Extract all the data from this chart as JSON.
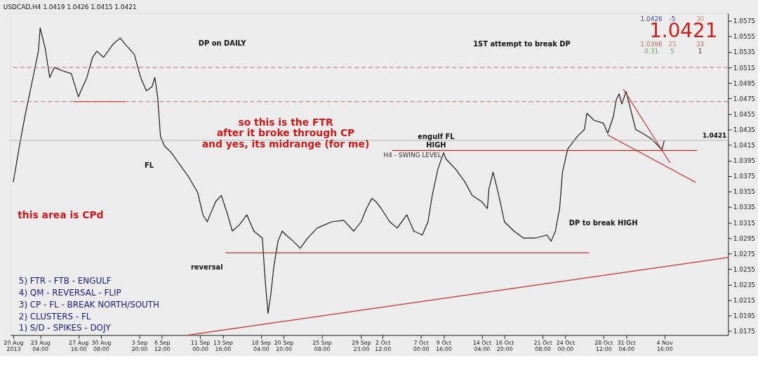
{
  "chart_data": {
    "type": "line",
    "title": "USDCAD,H4 1.0419 1.0426 1.0415 1.0421",
    "xlim": [
      "2013-08-19T16:00",
      "2013-11-12T04:00"
    ],
    "xticks": [
      {
        "value": "2013-08-20T00:00",
        "label": "20 Aug 2013"
      },
      {
        "value": "2013-08-23T04:00",
        "label": "23 Aug 04:00"
      },
      {
        "value": "2013-08-27T16:00",
        "label": "27 Aug 16:00"
      },
      {
        "value": "2013-08-30T08:00",
        "label": "30 Aug 08:00"
      },
      {
        "value": "2013-09-03T20:00",
        "label": "3 Sep 20:00"
      },
      {
        "value": "2013-09-06T12:00",
        "label": "6 Sep 12:00"
      },
      {
        "value": "2013-09-11T00:00",
        "label": "11 Sep 00:00"
      },
      {
        "value": "2013-09-13T16:00",
        "label": "13 Sep 16:00"
      },
      {
        "value": "2013-09-18T04:00",
        "label": "18 Sep 04:00"
      },
      {
        "value": "2013-09-20T20:00",
        "label": "20 Sep 20:00"
      },
      {
        "value": "2013-09-25T08:00",
        "label": "25 Sep 08:00"
      },
      {
        "value": "2013-09-29T23:00",
        "label": "29 Sep 23:00"
      },
      {
        "value": "2013-10-02T12:00",
        "label": "2 Oct 12:00"
      },
      {
        "value": "2013-10-07T00:00",
        "label": "7 Oct 00:00"
      },
      {
        "value": "2013-10-09T16:00",
        "label": "9 Oct 16:00"
      },
      {
        "value": "2013-10-14T04:00",
        "label": "14 Oct 04:00"
      },
      {
        "value": "2013-10-16T20:00",
        "label": "16 Oct 20:00"
      },
      {
        "value": "2013-10-21T08:00",
        "label": "21 Oct 08:00"
      },
      {
        "value": "2013-10-24T00:00",
        "label": "24 Oct 00:00"
      },
      {
        "value": "2013-10-28T12:00",
        "label": "28 Oct 12:00"
      },
      {
        "value": "2013-10-31T04:00",
        "label": "31 Oct 04:00"
      },
      {
        "value": "2013-11-04T16:00",
        "label": "4 Nov 16:00"
      }
    ],
    "ylim": [
      1.017,
      1.0585
    ],
    "yticks": [
      1.0175,
      1.0195,
      1.0215,
      1.0235,
      1.0255,
      1.0275,
      1.0295,
      1.0315,
      1.0335,
      1.0355,
      1.0375,
      1.0395,
      1.0415,
      1.0435,
      1.0455,
      1.0475,
      1.0495,
      1.0515,
      1.0535,
      1.0555,
      1.0575
    ],
    "grid": false,
    "line_style": "solid",
    "marker": "none",
    "series": [
      {
        "color": "#1a1a1a",
        "x": [
          "2013-08-20T00:00",
          "2013-08-20T19:00",
          "2013-08-21T09:00",
          "2013-08-22T04:00",
          "2013-08-22T23:00",
          "2013-08-23T04:00",
          "2013-08-23T18:00",
          "2013-08-24T07:00",
          "2013-08-24T20:00",
          "2013-08-25T17:00",
          "2013-08-26T20:00",
          "2013-08-27T16:00",
          "2013-08-28T04:00",
          "2013-08-28T16:00",
          "2013-08-29T08:00",
          "2013-08-29T20:00",
          "2013-08-30T15:00",
          "2013-08-31T18:00",
          "2013-09-01T14:00",
          "2013-09-02T04:00",
          "2013-09-03T06:00",
          "2013-09-04T00:00",
          "2013-09-04T16:00",
          "2013-09-05T08:00",
          "2013-09-05T16:00",
          "2013-09-06T00:00",
          "2013-09-06T08:00",
          "2013-09-06T19:00",
          "2013-09-07T15:00",
          "2013-09-08T11:00",
          "2013-09-09T14:00",
          "2013-09-10T17:00",
          "2013-09-11T08:00",
          "2013-09-11T20:00",
          "2013-09-12T08:00",
          "2013-09-12T20:00",
          "2013-09-13T12:00",
          "2013-09-14T06:00",
          "2013-09-14T19:00",
          "2013-09-15T15:00",
          "2013-09-16T12:00",
          "2013-09-17T08:00",
          "2013-09-18T08:00",
          "2013-09-18T16:00",
          "2013-09-19T00:00",
          "2013-09-19T08:00",
          "2013-09-19T16:00",
          "2013-09-20T04:00",
          "2013-09-20T16:00",
          "2013-09-21T03:00",
          "2013-09-21T23:00",
          "2013-09-22T19:00",
          "2013-09-23T16:00",
          "2013-09-24T19:00",
          "2013-09-26T12:00",
          "2013-09-27T22:00",
          "2013-09-29T02:00",
          "2013-09-29T23:00",
          "2013-09-30T14:00",
          "2013-10-01T05:00",
          "2013-10-01T17:00",
          "2013-10-02T08:00",
          "2013-10-03T08:00",
          "2013-10-04T05:00",
          "2013-10-05T08:00",
          "2013-10-06T04:00",
          "2013-10-07T04:00",
          "2013-10-07T20:00",
          "2013-10-08T08:00",
          "2013-10-09T00:00",
          "2013-10-09T16:00",
          "2013-10-09T23:00",
          "2013-10-11T02:00",
          "2013-10-12T05:00",
          "2013-10-13T01:00",
          "2013-10-14T04:00",
          "2013-10-14T20:00",
          "2013-10-15T00:00",
          "2013-10-15T12:00",
          "2013-10-16T00:00",
          "2013-10-16T08:00",
          "2013-10-16T20:00",
          "2013-10-17T23:00",
          "2013-10-19T02:00",
          "2013-10-20T12:00",
          "2013-10-21T20:00",
          "2013-10-22T08:00",
          "2013-10-22T20:00",
          "2013-10-23T08:00",
          "2013-10-23T16:00",
          "2013-10-24T07:00",
          "2013-10-25T10:00",
          "2013-10-26T06:00",
          "2013-10-26T13:00",
          "2013-10-27T09:00",
          "2013-10-28T12:00",
          "2013-10-29T00:00",
          "2013-10-29T16:00",
          "2013-10-30T00:00",
          "2013-10-30T08:00",
          "2013-10-30T16:00",
          "2013-10-31T04:00",
          "2013-11-01T07:00",
          "2013-11-02T03:00",
          "2013-11-03T06:00",
          "2013-11-04T09:00",
          "2013-11-04T16:00"
        ],
        "values": [
          1.0367,
          1.0418,
          1.0452,
          1.0494,
          1.0536,
          1.0566,
          1.054,
          1.0502,
          1.0515,
          1.0511,
          1.0507,
          1.0477,
          1.049,
          1.0502,
          1.0528,
          1.0536,
          1.0528,
          1.0545,
          1.0553,
          1.0545,
          1.0532,
          1.0502,
          1.0485,
          1.049,
          1.0502,
          1.0477,
          1.0426,
          1.0414,
          1.0405,
          1.0392,
          1.0375,
          1.0354,
          1.0325,
          1.0316,
          1.0329,
          1.0342,
          1.035,
          1.0325,
          1.0304,
          1.0312,
          1.0325,
          1.0304,
          1.0295,
          1.024,
          1.0198,
          1.0223,
          1.0257,
          1.0291,
          1.0304,
          1.0299,
          1.0291,
          1.0282,
          1.0295,
          1.0308,
          1.0316,
          1.0318,
          1.0304,
          1.0316,
          1.0333,
          1.0346,
          1.0342,
          1.0333,
          1.0316,
          1.0308,
          1.0325,
          1.0304,
          1.0299,
          1.0316,
          1.035,
          1.0384,
          1.0405,
          1.0397,
          1.0384,
          1.0367,
          1.035,
          1.0342,
          1.0333,
          1.0358,
          1.038,
          1.0358,
          1.0342,
          1.0316,
          1.0304,
          1.0295,
          1.0295,
          1.0299,
          1.0291,
          1.0304,
          1.0333,
          1.038,
          1.041,
          1.0426,
          1.0435,
          1.0456,
          1.0447,
          1.0443,
          1.043,
          1.0452,
          1.0473,
          1.0481,
          1.0468,
          1.0484,
          1.0435,
          1.043,
          1.0422,
          1.0409,
          1.0421
        ]
      },
      {
        "color": "#c0302f",
        "x": [
          "2013-09-09T14:00",
          "2013-11-12T04:00"
        ],
        "values": [
          1.017,
          1.027
        ]
      },
      {
        "color": "#c0302f",
        "x": [
          "2013-09-13T23:00",
          "2013-10-26T20:00"
        ],
        "values": [
          1.0276,
          1.0276
        ]
      },
      {
        "color": "#c0302f",
        "x": [
          "2013-10-03T15:00",
          "2013-11-08T12:00"
        ],
        "values": [
          1.0408,
          1.0408
        ]
      },
      {
        "color": "#c0302f",
        "x": [
          "2013-08-27T02:00",
          "2013-09-02T04:00"
        ],
        "values": [
          1.0471,
          1.0471
        ]
      },
      {
        "color": "#c0302f",
        "x": [
          "2013-10-29T00:00",
          "2013-11-08T08:00"
        ],
        "values": [
          1.0428,
          1.0367
        ]
      },
      {
        "color": "#c0302f",
        "x": [
          "2013-10-30T20:00",
          "2013-11-05T08:00"
        ],
        "values": [
          1.0487,
          1.0392
        ]
      }
    ],
    "ref_lines": [
      {
        "axis": "y",
        "value": 1.0515,
        "color": "#c86464",
        "line_style": "dashed"
      },
      {
        "axis": "y",
        "value": 1.0471,
        "color": "#c86464",
        "line_style": "dashed"
      },
      {
        "axis": "y",
        "value": 1.0421,
        "label": "1.0421",
        "color": "#b4b4b4",
        "line_style": "solid"
      }
    ],
    "annotations": [
      "DP on DAILY",
      "so this is the FTR\nafter it broke through CP\nand yes, its midrange (for me)",
      "FL",
      "this area is CPd",
      "engulf FL\nHIGH",
      "H4 - SWING LEVEL",
      "reversal",
      "1ST attempt to break DP",
      "DP to break HIGH",
      "5) FTR - FTB - ENGULF",
      "4) QM - REVERSAL - FLIP",
      "3) CP - FL - BREAK NORTH/SOUTH",
      "2) CLUSTERS - FL",
      "1) S/D - SPIKES - DOJY",
      "1.0426",
      "-5",
      "30",
      "1.0421",
      "1.0396",
      "25",
      "33",
      "0.31",
      "5",
      "1"
    ]
  }
}
